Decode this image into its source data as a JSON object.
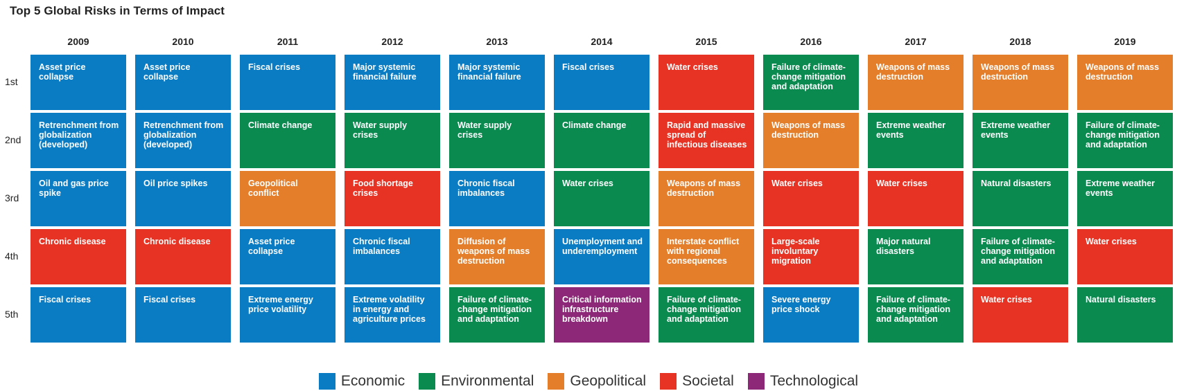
{
  "title": "Top 5 Global Risks in Terms of Impact",
  "categories_colors": {
    "Economic": "#0a7cc4",
    "Environmental": "#0a8a4f",
    "Geopolitical": "#e47e2a",
    "Societal": "#e63324",
    "Technological": "#8c2877"
  },
  "legend": [
    "Economic",
    "Environmental",
    "Geopolitical",
    "Societal",
    "Technological"
  ],
  "chart_data": {
    "type": "table",
    "title": "Top 5 Global Risks in Terms of Impact",
    "columns": [
      "2009",
      "2010",
      "2011",
      "2012",
      "2013",
      "2014",
      "2015",
      "2016",
      "2017",
      "2018",
      "2019"
    ],
    "rows": [
      "1st",
      "2nd",
      "3rd",
      "4th",
      "5th"
    ],
    "cells": [
      [
        {
          "text": "Asset price collapse",
          "category": "Economic"
        },
        {
          "text": "Asset price collapse",
          "category": "Economic"
        },
        {
          "text": "Fiscal crises",
          "category": "Economic"
        },
        {
          "text": "Major systemic financial failure",
          "category": "Economic"
        },
        {
          "text": "Major systemic financial failure",
          "category": "Economic"
        },
        {
          "text": "Fiscal crises",
          "category": "Economic"
        },
        {
          "text": "Water crises",
          "category": "Societal"
        },
        {
          "text": "Failure of climate-change mitigation and adaptation",
          "category": "Environmental"
        },
        {
          "text": "Weapons of mass destruction",
          "category": "Geopolitical"
        },
        {
          "text": "Weapons of mass destruction",
          "category": "Geopolitical"
        },
        {
          "text": "Weapons of mass destruction",
          "category": "Geopolitical"
        }
      ],
      [
        {
          "text": "Retrenchment from globalization (developed)",
          "category": "Economic"
        },
        {
          "text": "Retrenchment from globalization (developed)",
          "category": "Economic"
        },
        {
          "text": "Climate change",
          "category": "Environmental"
        },
        {
          "text": "Water supply crises",
          "category": "Environmental"
        },
        {
          "text": "Water supply crises",
          "category": "Environmental"
        },
        {
          "text": "Climate change",
          "category": "Environmental"
        },
        {
          "text": "Rapid and massive spread of infectious diseases",
          "category": "Societal"
        },
        {
          "text": "Weapons of mass destruction",
          "category": "Geopolitical"
        },
        {
          "text": "Extreme weather events",
          "category": "Environmental"
        },
        {
          "text": "Extreme weather events",
          "category": "Environmental"
        },
        {
          "text": "Failure of climate-change mitigation and adaptation",
          "category": "Environmental"
        }
      ],
      [
        {
          "text": "Oil and gas price spike",
          "category": "Economic"
        },
        {
          "text": "Oil price spikes",
          "category": "Economic"
        },
        {
          "text": "Geopolitical conflict",
          "category": "Geopolitical"
        },
        {
          "text": "Food shortage crises",
          "category": "Societal"
        },
        {
          "text": "Chronic fiscal imbalances",
          "category": "Economic"
        },
        {
          "text": "Water crises",
          "category": "Environmental"
        },
        {
          "text": "Weapons of mass destruction",
          "category": "Geopolitical"
        },
        {
          "text": "Water crises",
          "category": "Societal"
        },
        {
          "text": "Water crises",
          "category": "Societal"
        },
        {
          "text": "Natural disasters",
          "category": "Environmental"
        },
        {
          "text": "Extreme weather events",
          "category": "Environmental"
        }
      ],
      [
        {
          "text": "Chronic disease",
          "category": "Societal"
        },
        {
          "text": "Chronic disease",
          "category": "Societal"
        },
        {
          "text": "Asset price collapse",
          "category": "Economic"
        },
        {
          "text": "Chronic fiscal imbalances",
          "category": "Economic"
        },
        {
          "text": "Diffusion of weapons of mass destruction",
          "category": "Geopolitical"
        },
        {
          "text": "Unemployment and underemployment",
          "category": "Economic"
        },
        {
          "text": "Interstate conflict with regional consequences",
          "category": "Geopolitical"
        },
        {
          "text": "Large-scale involuntary migration",
          "category": "Societal"
        },
        {
          "text": "Major natural disasters",
          "category": "Environmental"
        },
        {
          "text": "Failure of climate-change mitigation and adaptation",
          "category": "Environmental"
        },
        {
          "text": "Water crises",
          "category": "Societal"
        }
      ],
      [
        {
          "text": "Fiscal crises",
          "category": "Economic"
        },
        {
          "text": "Fiscal crises",
          "category": "Economic"
        },
        {
          "text": "Extreme energy price volatility",
          "category": "Economic"
        },
        {
          "text": "Extreme volatility in energy and agriculture prices",
          "category": "Economic"
        },
        {
          "text": "Failure of climate-change mitigation and adaptation",
          "category": "Environmental"
        },
        {
          "text": "Critical information infrastructure breakdown",
          "category": "Technological"
        },
        {
          "text": "Failure of climate-change mitigation and adaptation",
          "category": "Environmental"
        },
        {
          "text": "Severe energy price shock",
          "category": "Economic"
        },
        {
          "text": "Failure of climate-change mitigation and adaptation",
          "category": "Environmental"
        },
        {
          "text": "Water crises",
          "category": "Societal"
        },
        {
          "text": "Natural disasters",
          "category": "Environmental"
        }
      ]
    ]
  }
}
